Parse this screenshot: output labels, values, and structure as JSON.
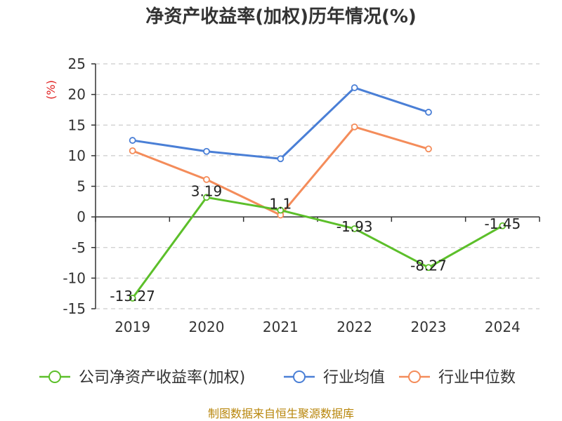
{
  "chart_data": {
    "type": "line",
    "title": "净资产收益率(加权)历年情况(%)",
    "ylabel": "(%)",
    "xlabel": "",
    "categories": [
      "2019",
      "2020",
      "2021",
      "2022",
      "2023",
      "2024"
    ],
    "ylim": [
      -15,
      25
    ],
    "yticks": [
      25,
      20,
      15,
      10,
      5,
      0,
      -5,
      -10,
      -15
    ],
    "grid": true,
    "legend_position": "bottom",
    "series": [
      {
        "name": "公司净资产收益率(加权)",
        "color": "#5cbf2a",
        "values": [
          -13.27,
          3.19,
          1.1,
          -1.93,
          -8.27,
          -1.45
        ],
        "labels": [
          "-13.27",
          "3.19",
          "1.1",
          "-1.93",
          "-8.27",
          "-1.45"
        ]
      },
      {
        "name": "行业均值",
        "color": "#4a7fd6",
        "values": [
          12.5,
          10.7,
          9.5,
          21.1,
          17.1,
          null
        ]
      },
      {
        "name": "行业中位数",
        "color": "#f48c5a",
        "values": [
          10.8,
          6.1,
          0.3,
          14.7,
          11.1,
          null
        ]
      }
    ],
    "source": "制图数据来自恒生聚源数据库"
  }
}
